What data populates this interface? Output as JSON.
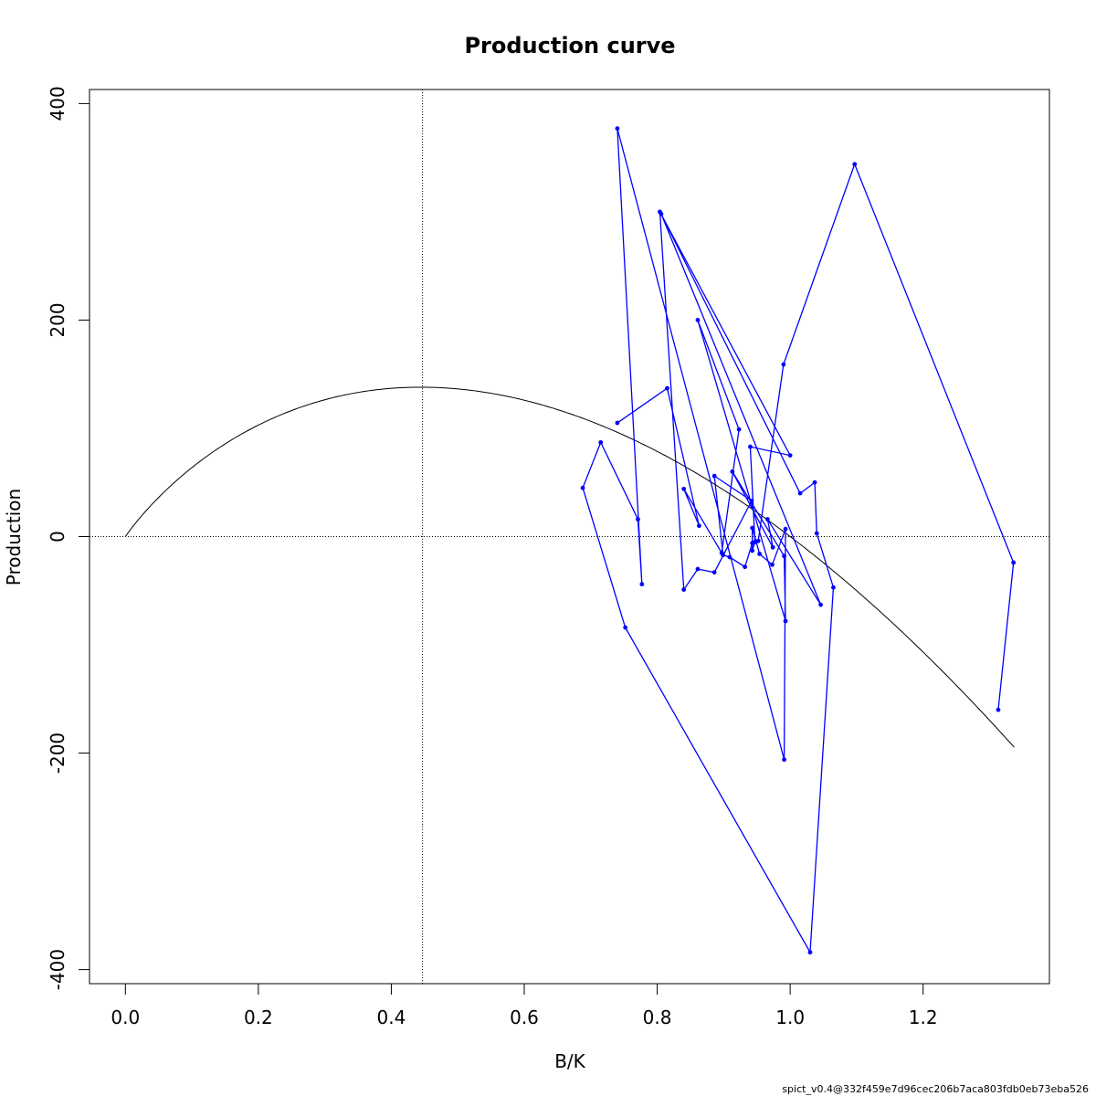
{
  "chart_data": {
    "type": "line",
    "title": "Production curve",
    "xlabel": "B/K",
    "ylabel": "Production",
    "xlim": [
      -0.054,
      1.39
    ],
    "ylim": [
      -413,
      413
    ],
    "x_ticks": [
      0.0,
      0.2,
      0.4,
      0.6,
      0.8,
      1.0,
      1.2
    ],
    "x_tick_labels": [
      "0.0",
      "0.2",
      "0.4",
      "0.6",
      "0.8",
      "1.0",
      "1.2"
    ],
    "y_ticks": [
      -400,
      -200,
      0,
      200,
      400
    ],
    "y_tick_labels": [
      "-400",
      "-200",
      "0",
      "200",
      "400"
    ],
    "reference_lines": {
      "vertical_x": 0.447,
      "horizontal_y": 0
    },
    "curve": {
      "type": "pella-tomlinson",
      "bmsy_over_k": 0.447,
      "msy": 138,
      "exponent": 1.5,
      "x_range": [
        0.0,
        1.337
      ],
      "color": "#000000"
    },
    "series": [
      {
        "color": "#0000ff",
        "points": [
          [
            0.74,
            105
          ],
          [
            0.815,
            137
          ],
          [
            0.863,
            10
          ],
          [
            0.84,
            44
          ],
          [
            0.897,
            -15
          ],
          [
            0.923,
            99
          ],
          [
            0.861,
            200
          ],
          [
            0.993,
            -78
          ],
          [
            0.991,
            -18
          ],
          [
            0.913,
            60
          ],
          [
            0.974,
            -10
          ],
          [
            0.966,
            16
          ],
          [
            1.046,
            -63
          ],
          [
            0.806,
            298
          ],
          [
            1.015,
            40
          ],
          [
            1.037,
            50
          ],
          [
            1.04,
            3
          ],
          [
            1.065,
            -47
          ],
          [
            1.03,
            -384
          ],
          [
            0.752,
            -84
          ],
          [
            0.688,
            45
          ],
          [
            0.715,
            87
          ],
          [
            0.771,
            16
          ],
          [
            0.777,
            -44
          ],
          [
            0.74,
            377
          ],
          [
            0.991,
            -206
          ],
          [
            0.993,
            7
          ],
          [
            0.973,
            -26
          ],
          [
            0.954,
            -16
          ],
          [
            0.943,
            8
          ],
          [
            0.943,
            -13
          ],
          [
            0.947,
            -5
          ],
          [
            0.94,
            83
          ],
          [
            1.0,
            75
          ],
          [
            0.804,
            300
          ],
          [
            0.84,
            -49
          ],
          [
            0.861,
            -30
          ],
          [
            0.886,
            -33
          ],
          [
            0.942,
            33
          ],
          [
            0.886,
            56
          ],
          [
            0.899,
            -17
          ],
          [
            0.909,
            -19
          ],
          [
            0.932,
            -28
          ],
          [
            0.943,
            -6
          ],
          [
            0.952,
            -4
          ],
          [
            0.99,
            159
          ],
          [
            1.097,
            344
          ],
          [
            1.336,
            -24
          ],
          [
            1.313,
            -160
          ]
        ]
      }
    ],
    "footer_text": "spict_v0.4@332f459e7d96cec206b7aca803fdb0eb73eba526"
  }
}
